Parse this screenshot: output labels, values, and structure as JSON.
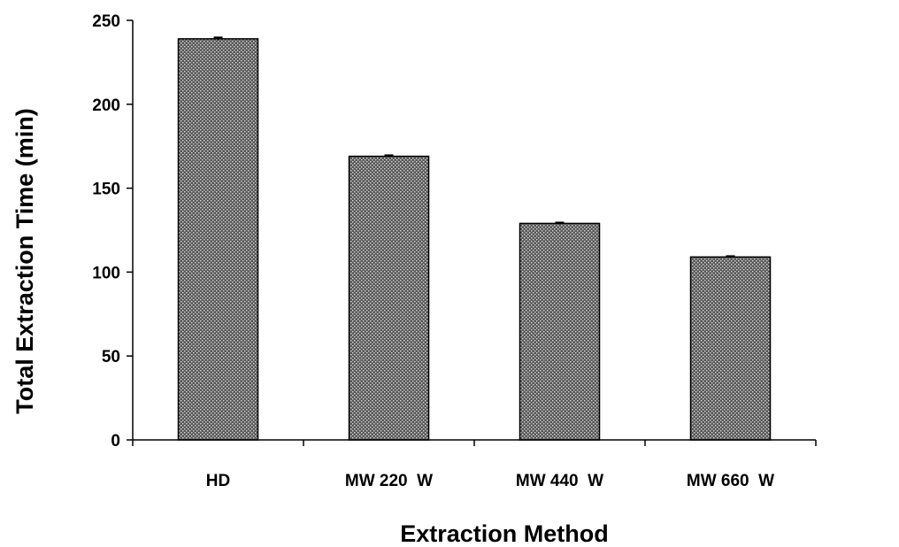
{
  "chart_data": {
    "type": "bar",
    "categories": [
      "HD",
      "MW 220  W",
      "MW 440  W",
      "MW 660  W"
    ],
    "values": [
      239,
      169,
      129,
      109
    ],
    "error": [
      0.8,
      0.6,
      0.5,
      0.5
    ],
    "xlabel": "Extraction Method",
    "ylabel": "Total Extraction Time (min)",
    "ylim": [
      0,
      250
    ],
    "yticks": [
      0,
      50,
      100,
      150,
      200,
      250
    ],
    "grid": false,
    "legend": "none",
    "bar_fill": "#595959",
    "bar_pattern_dot": "#d9d9d9",
    "bar_stroke": "#000000"
  }
}
